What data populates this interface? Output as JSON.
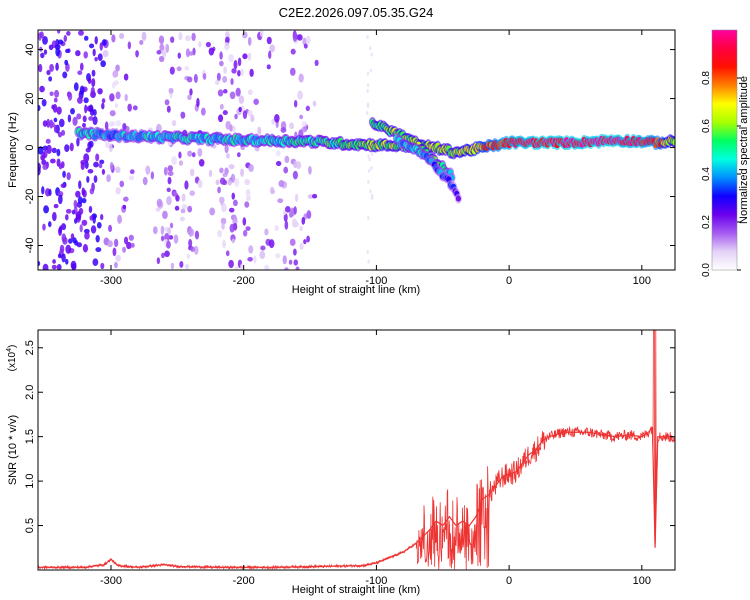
{
  "title": "C2E2.2026.097.05.35.G24",
  "chart_data": [
    {
      "type": "heatmap",
      "xlabel": "Height of straight line (km)",
      "ylabel": "Frequency (Hz)",
      "xlim": [
        -355,
        125
      ],
      "ylim": [
        -50,
        48
      ],
      "xticks": [
        -300,
        -200,
        -100,
        0,
        100
      ],
      "yticks": [
        -40,
        -20,
        0,
        20,
        40
      ],
      "colorbar": {
        "label": "Normalized spectral amplitude",
        "range": [
          0,
          1
        ],
        "ticks": [
          "0.0",
          "0.2",
          "0.4",
          "0.6",
          "0.8"
        ],
        "colors": [
          "#ffffff",
          "#e4d2f7",
          "#a55cf0",
          "#6b00ee",
          "#1000ff",
          "#0090ff",
          "#00ffe0",
          "#00ff60",
          "#a8ff00",
          "#ffff00",
          "#ff8000",
          "#ff1000",
          "#ff0040",
          "#ff00a0"
        ]
      },
      "ridge_main": {
        "x": [
          -325,
          -300,
          -250,
          -200,
          -150,
          -120,
          -100,
          -60,
          -40,
          -20,
          0,
          20,
          50,
          80,
          100,
          110,
          125
        ],
        "y": [
          6,
          5,
          4,
          3,
          2.5,
          1.5,
          1,
          0.5,
          -2,
          0,
          2,
          2,
          2,
          3,
          2.5,
          2,
          2.5
        ],
        "amplitude": [
          0.45,
          0.4,
          0.45,
          0.45,
          0.5,
          0.55,
          0.6,
          0.6,
          0.6,
          0.75,
          0.9,
          0.95,
          0.95,
          0.95,
          0.9,
          0.85,
          0.6
        ]
      },
      "ridge_branches": [
        {
          "x": [
            -103,
            -85,
            -70,
            -60,
            -50,
            -42
          ],
          "y": [
            10,
            6,
            2,
            -4,
            -8,
            -12
          ],
          "amplitude": [
            0.55,
            0.6,
            0.6,
            0.55,
            0.5,
            0.35
          ]
        },
        {
          "x": [
            -85,
            -70,
            -60,
            -50,
            -42,
            -38
          ],
          "y": [
            3,
            -1,
            -5,
            -11,
            -16,
            -21
          ],
          "amplitude": [
            0.4,
            0.45,
            0.4,
            0.35,
            0.3,
            0.25
          ]
        }
      ],
      "noise_x_range": [
        -355,
        -145
      ]
    },
    {
      "type": "line",
      "xlabel": "Height of straight line (km)",
      "ylabel": "SNR (10 * v/v)",
      "y_scale_label": "(x10",
      "y_scale_exponent": "4",
      "xlim": [
        -355,
        125
      ],
      "ylim": [
        0,
        2.7
      ],
      "xticks": [
        -300,
        -200,
        -100,
        0,
        100
      ],
      "yticks": [
        "0.5",
        "1.0",
        "1.5",
        "2.0",
        "2.5"
      ],
      "series": [
        {
          "name": "SNR",
          "color": "#ee3333",
          "x": [
            -355,
            -320,
            -305,
            -300,
            -295,
            -280,
            -260,
            -250,
            -220,
            -180,
            -140,
            -110,
            -100,
            -90,
            -80,
            -70,
            -60,
            -55,
            -50,
            -45,
            -40,
            -35,
            -30,
            -25,
            -20,
            -15,
            -10,
            -5,
            0,
            5,
            10,
            15,
            20,
            25,
            30,
            35,
            40,
            50,
            60,
            70,
            80,
            90,
            100,
            105,
            108,
            110,
            112,
            115,
            120,
            125
          ],
          "y": [
            0.03,
            0.03,
            0.06,
            0.12,
            0.05,
            0.03,
            0.06,
            0.04,
            0.03,
            0.03,
            0.04,
            0.05,
            0.08,
            0.14,
            0.2,
            0.3,
            0.45,
            0.55,
            0.5,
            0.6,
            0.5,
            0.55,
            0.5,
            0.6,
            0.8,
            0.85,
            0.95,
            1.05,
            1.08,
            1.1,
            1.2,
            1.3,
            1.35,
            1.45,
            1.5,
            1.52,
            1.55,
            1.55,
            1.55,
            1.52,
            1.5,
            1.52,
            1.5,
            1.55,
            1.6,
            0.25,
            1.5,
            1.5,
            1.5,
            1.48
          ]
        }
      ]
    }
  ]
}
